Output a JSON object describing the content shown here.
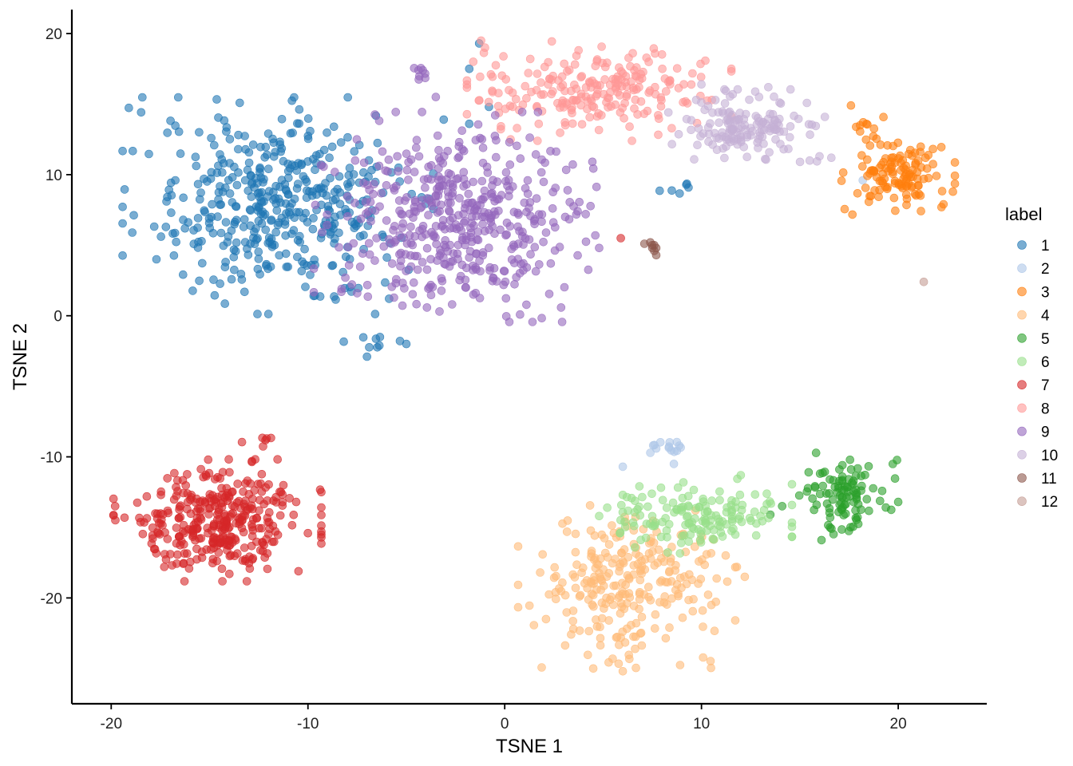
{
  "chart_data": {
    "type": "scatter",
    "xlabel": "TSNE 1",
    "ylabel": "TSNE 2",
    "xlim": [
      -22,
      24.5
    ],
    "ylim": [
      -27.5,
      21.7
    ],
    "xticks": [
      -20,
      -10,
      0,
      10,
      20
    ],
    "yticks": [
      20,
      10,
      0,
      -10,
      -20
    ],
    "grid": false,
    "legend": {
      "title": "label",
      "position": "right"
    },
    "point_opacity": 0.6,
    "series": [
      {
        "name": "1",
        "color": "#1F77B4",
        "clusters": [
          {
            "cx": -11.5,
            "cy": 7.8,
            "sx": 3.3,
            "sy": 3.2,
            "n": 430
          },
          {
            "cx": -6.5,
            "cy": -2.2,
            "sx": 0.7,
            "sy": 0.4,
            "n": 8
          },
          {
            "cx": 8.8,
            "cy": 9.0,
            "sx": 0.5,
            "sy": 0.3,
            "n": 6
          }
        ],
        "points": [
          [
            -17.7,
            4.0
          ],
          [
            -7.0,
            -2.9
          ],
          [
            -5.0,
            -2.0
          ],
          [
            -1.3,
            19.3
          ],
          [
            -1.8,
            17.5
          ],
          [
            -1.8,
            13.6
          ],
          [
            -3.1,
            13.9
          ],
          [
            -0.8,
            14.8
          ]
        ]
      },
      {
        "name": "2",
        "color": "#AEC7E8",
        "clusters": [
          {
            "cx": 8.4,
            "cy": -9.2,
            "sx": 0.5,
            "sy": 0.35,
            "n": 14
          }
        ],
        "points": [
          [
            6.0,
            -10.7
          ],
          [
            8.6,
            -10.5
          ],
          [
            18.2,
            9.6
          ]
        ]
      },
      {
        "name": "3",
        "color": "#FF7F0E",
        "clusters": [
          {
            "cx": 20.0,
            "cy": 10.0,
            "sx": 1.2,
            "sy": 1.2,
            "n": 120
          },
          {
            "cx": 18.6,
            "cy": 13.5,
            "sx": 0.4,
            "sy": 0.5,
            "n": 10
          }
        ],
        "points": [
          [
            17.6,
            14.9
          ],
          [
            22.3,
            7.9
          ],
          [
            22.2,
            7.7
          ]
        ]
      },
      {
        "name": "4",
        "color": "#FFBB78",
        "clusters": [
          {
            "cx": 6.2,
            "cy": -19.2,
            "sx": 2.3,
            "sy": 2.4,
            "n": 260
          }
        ],
        "points": [
          [
            2.1,
            -21.5
          ],
          [
            1.8,
            -18.2
          ],
          [
            4.5,
            -25.0
          ],
          [
            6.0,
            -25.2
          ],
          [
            10.5,
            -20.5
          ],
          [
            12.2,
            -18.5
          ],
          [
            11.8,
            -17.8
          ]
        ]
      },
      {
        "name": "5",
        "color": "#2CA02C",
        "clusters": [
          {
            "cx": 17.3,
            "cy": -12.6,
            "sx": 1.1,
            "sy": 1.2,
            "n": 100
          }
        ],
        "points": [
          [
            13.5,
            -14.1
          ],
          [
            14.1,
            -13.5
          ],
          [
            20.0,
            -13.2
          ],
          [
            16.1,
            -15.9
          ]
        ]
      },
      {
        "name": "6",
        "color": "#98DF8A",
        "clusters": [
          {
            "cx": 9.8,
            "cy": -14.2,
            "sx": 2.0,
            "sy": 1.1,
            "n": 150
          }
        ],
        "points": [
          [
            12.0,
            -11.3
          ],
          [
            13.0,
            -14.2
          ],
          [
            6.0,
            -12.7
          ],
          [
            4.8,
            -14.2
          ]
        ]
      },
      {
        "name": "7",
        "color": "#D62728",
        "clusters": [
          {
            "cx": -14.6,
            "cy": -14.5,
            "sx": 2.2,
            "sy": 1.8,
            "n": 340
          },
          {
            "cx": -12.5,
            "cy": -9.0,
            "sx": 0.4,
            "sy": 0.3,
            "n": 6
          }
        ],
        "points": [
          [
            -19.8,
            -13.5
          ],
          [
            -10.6,
            -13.2
          ],
          [
            -17.3,
            -17.8
          ],
          [
            5.9,
            5.5
          ]
        ]
      },
      {
        "name": "8",
        "color": "#FF9896",
        "clusters": [
          {
            "cx": 4.8,
            "cy": 16.0,
            "sx": 2.8,
            "sy": 1.5,
            "n": 220
          }
        ],
        "points": [
          [
            -1.2,
            19.5
          ],
          [
            -1.6,
            18.0
          ],
          [
            1.2,
            17.2
          ],
          [
            0.4,
            15.8
          ],
          [
            9.1,
            16.4
          ],
          [
            0.3,
            12.5
          ],
          [
            -1.0,
            19.0
          ]
        ]
      },
      {
        "name": "9",
        "color": "#9467BD",
        "clusters": [
          {
            "cx": -2.5,
            "cy": 7.0,
            "sx": 3.0,
            "sy": 3.1,
            "n": 460
          },
          {
            "cx": -4.3,
            "cy": 17.2,
            "sx": 0.2,
            "sy": 0.3,
            "n": 8
          }
        ],
        "points": [
          [
            -7.5,
            1.6
          ],
          [
            -8.1,
            2.7
          ],
          [
            -3.5,
            15.5
          ],
          [
            -1.1,
            11.9
          ],
          [
            4.8,
            4.8
          ],
          [
            -7.6,
            11.0
          ],
          [
            -8.3,
            1.7
          ]
        ]
      },
      {
        "name": "10",
        "color": "#C5B0D5",
        "clusters": [
          {
            "cx": 12.4,
            "cy": 13.4,
            "sx": 1.7,
            "sy": 1.1,
            "n": 150
          }
        ],
        "points": [
          [
            10.0,
            16.4
          ],
          [
            13.4,
            16.2
          ],
          [
            15.5,
            11.0
          ],
          [
            16.0,
            11.3
          ],
          [
            16.6,
            11.2
          ]
        ]
      },
      {
        "name": "11",
        "color": "#8C564B",
        "clusters": [],
        "points": [
          [
            7.5,
            4.8
          ],
          [
            7.6,
            5.0
          ],
          [
            7.4,
            5.2
          ],
          [
            7.7,
            4.8
          ],
          [
            7.5,
            5.0
          ],
          [
            7.6,
            4.6
          ],
          [
            7.7,
            4.3
          ],
          [
            7.1,
            5.1
          ]
        ]
      },
      {
        "name": "12",
        "color": "#C49C94",
        "clusters": [],
        "points": [
          [
            21.3,
            2.4
          ]
        ]
      }
    ]
  }
}
